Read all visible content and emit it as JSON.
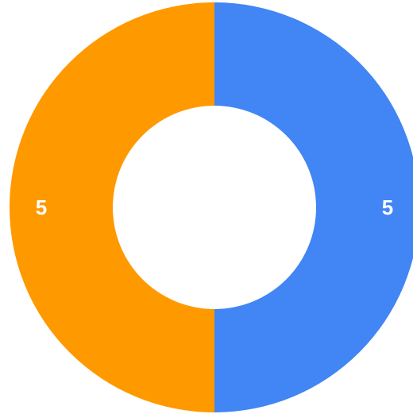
{
  "chart_data": {
    "type": "pie",
    "donut": true,
    "slices": [
      {
        "value": 5,
        "label": "5",
        "color": "#4285f4"
      },
      {
        "value": 5,
        "label": "5",
        "color": "#ff9900"
      }
    ],
    "start": "top",
    "direction": "clockwise"
  }
}
